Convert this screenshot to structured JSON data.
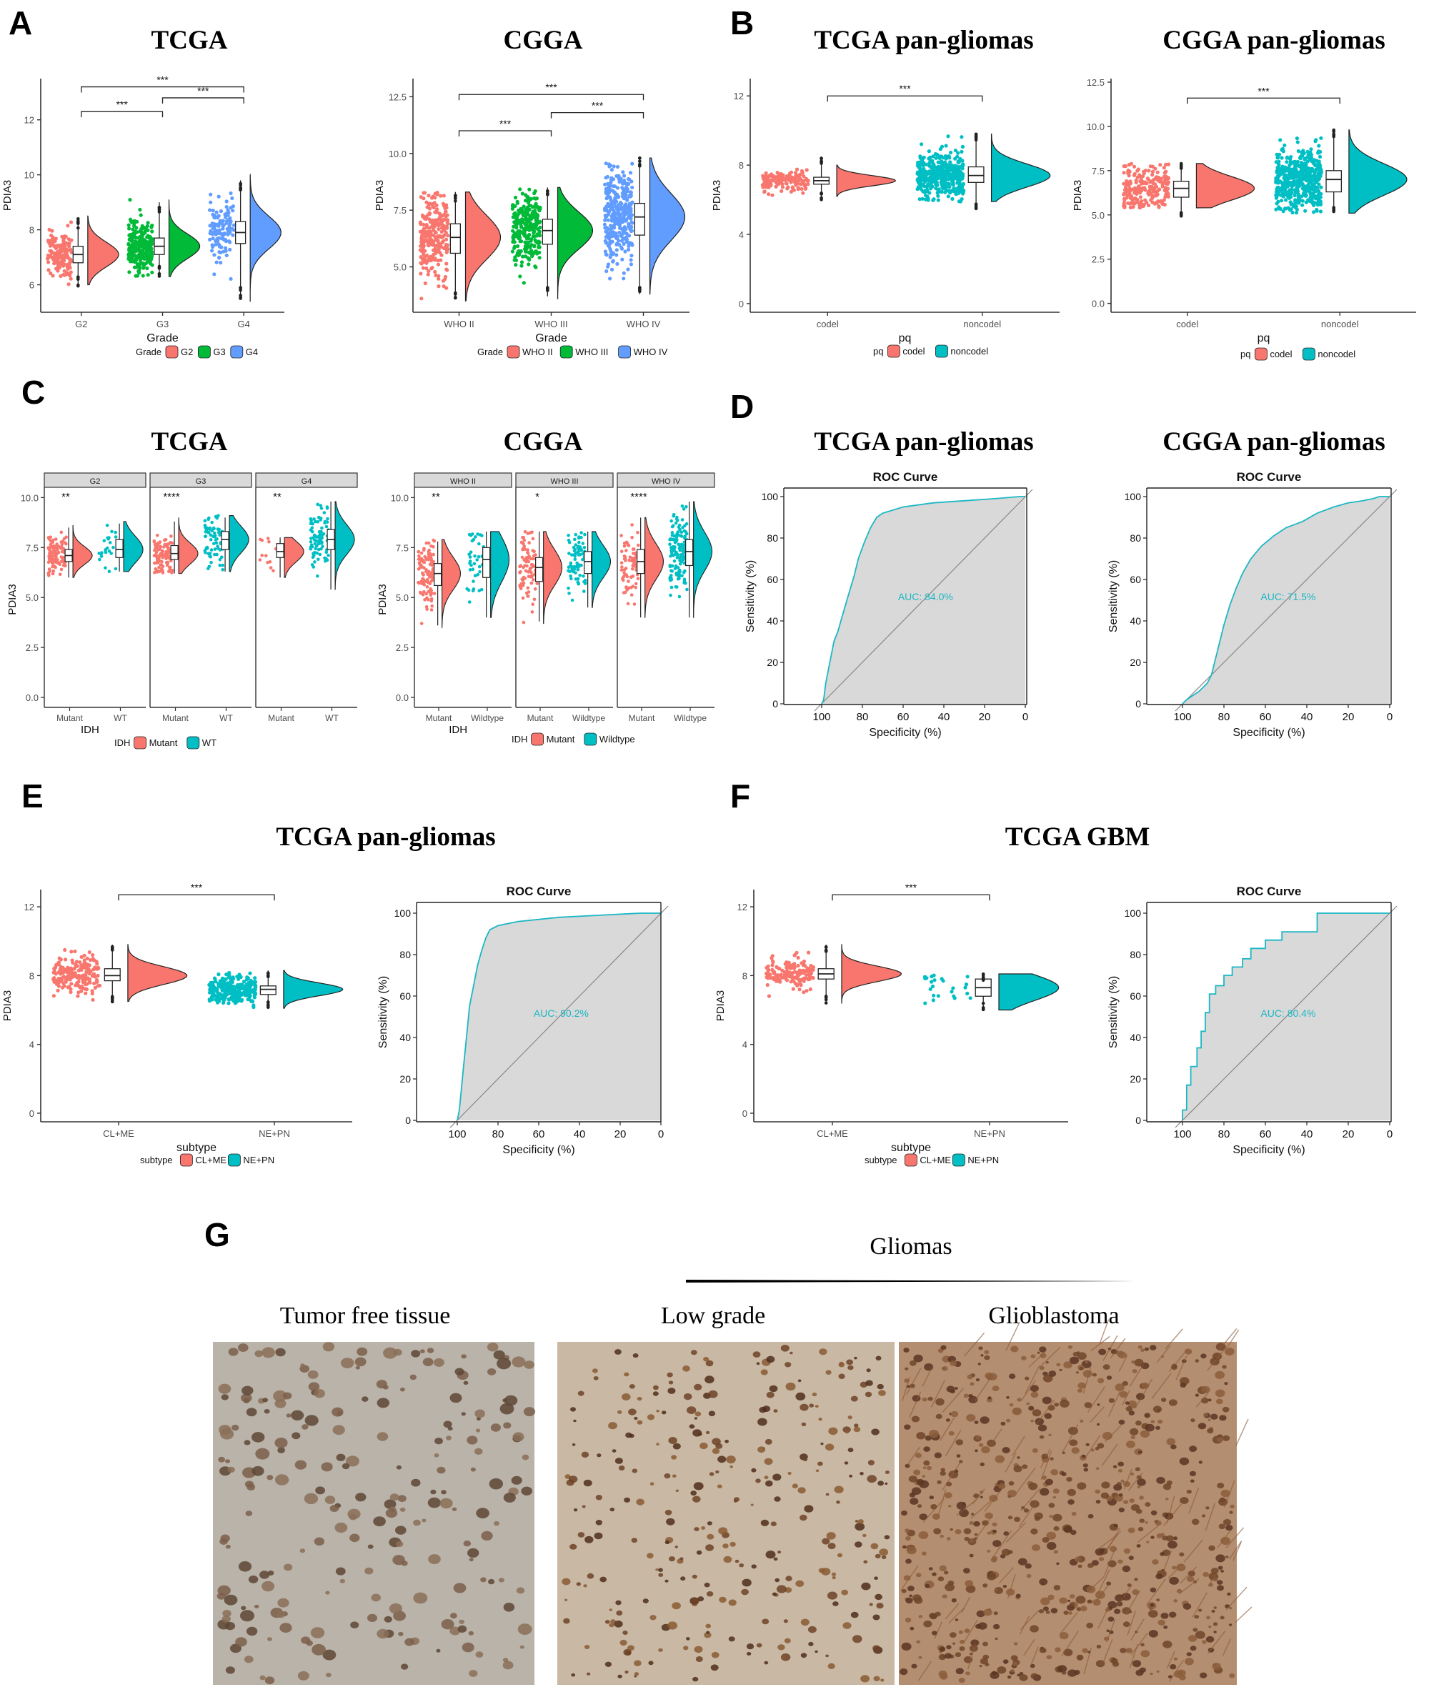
{
  "figure": {
    "panel_letters": [
      "A",
      "B",
      "C",
      "D",
      "E",
      "F",
      "G"
    ],
    "titles": {
      "A": [
        "TCGA",
        "CGGA"
      ],
      "B": [
        "TCGA  pan-gliomas",
        "CGGA  pan-gliomas"
      ],
      "C": [
        "TCGA",
        "CGGA"
      ],
      "D": [
        "TCGA  pan-gliomas",
        "CGGA  pan-gliomas"
      ],
      "E": [
        "TCGA  pan-gliomas"
      ],
      "F": [
        "TCGA  GBM"
      ]
    },
    "ihc": {
      "group_label": "Gliomas",
      "captions": [
        "Tumor free tissue",
        "Low grade",
        "Glioblastoma"
      ],
      "colors": [
        "#b9b3a9",
        "#c8b8a4",
        "#b48e70"
      ]
    }
  },
  "chart_data": [
    {
      "id": "A1",
      "type": "raincloud",
      "ylabel": "PDIA3",
      "xlabel": "Grade",
      "ylim": [
        5,
        13.5
      ],
      "yticks": [
        6,
        8,
        10,
        12
      ],
      "categories": [
        "G2",
        "G3",
        "G4"
      ],
      "colors": [
        "#F8766D",
        "#00BA38",
        "#619CFF"
      ],
      "legend": {
        "title": "Grade",
        "entries": [
          "G2",
          "G3",
          "G4"
        ]
      },
      "medians": [
        7.1,
        7.4,
        7.9
      ],
      "q1": [
        6.8,
        7.1,
        7.5
      ],
      "q3": [
        7.4,
        7.7,
        8.3
      ],
      "wmin": [
        5.9,
        6.3,
        5.5
      ],
      "wmax": [
        8.4,
        9.0,
        9.8
      ],
      "spread": [
        [
          6.0,
          8.5
        ],
        [
          6.3,
          9.1
        ],
        [
          5.4,
          10.0
        ]
      ],
      "comparisons": [
        {
          "a": 0,
          "b": 1,
          "label": "***",
          "y": 12.3
        },
        {
          "a": 1,
          "b": 2,
          "label": "***",
          "y": 12.8
        },
        {
          "a": 0,
          "b": 2,
          "label": "***",
          "y": 13.2
        }
      ]
    },
    {
      "id": "A2",
      "type": "raincloud",
      "ylabel": "PDIA3",
      "xlabel": "Grade",
      "ylim": [
        3,
        13.3
      ],
      "yticks": [
        5,
        7.5,
        10,
        12.5
      ],
      "ytick_labels": [
        "5.0",
        "7.5",
        "10.0",
        "12.5"
      ],
      "categories": [
        "WHO II",
        "WHO III",
        "WHO IV"
      ],
      "colors": [
        "#F8766D",
        "#00BA38",
        "#619CFF"
      ],
      "legend": {
        "title": "Grade",
        "entries": [
          "WHO II",
          "WHO III",
          "WHO IV"
        ]
      },
      "medians": [
        6.3,
        6.6,
        7.2
      ],
      "q1": [
        5.6,
        6.0,
        6.4
      ],
      "q3": [
        6.9,
        7.1,
        7.8
      ],
      "wmin": [
        3.6,
        3.7,
        3.8
      ],
      "wmax": [
        8.3,
        8.5,
        9.8
      ],
      "spread": [
        [
          3.5,
          8.3
        ],
        [
          3.6,
          8.5
        ],
        [
          3.8,
          9.8
        ]
      ],
      "comparisons": [
        {
          "a": 0,
          "b": 1,
          "label": "***",
          "y": 11.0
        },
        {
          "a": 1,
          "b": 2,
          "label": "***",
          "y": 11.8
        },
        {
          "a": 0,
          "b": 2,
          "label": "***",
          "y": 12.6
        }
      ]
    },
    {
      "id": "B1",
      "type": "raincloud",
      "ylabel": "PDIA3",
      "xlabel": "pq",
      "ylim": [
        -0.5,
        13
      ],
      "yticks": [
        0,
        4,
        8,
        12
      ],
      "categories": [
        "codel",
        "noncodel"
      ],
      "colors": [
        "#F8766D",
        "#00BFC4"
      ],
      "legend": {
        "title": "pq",
        "entries": [
          "codel",
          "noncodel"
        ]
      },
      "medians": [
        7.1,
        7.4
      ],
      "q1": [
        6.9,
        7.0
      ],
      "q3": [
        7.3,
        7.9
      ],
      "wmin": [
        6.0,
        5.4
      ],
      "wmax": [
        8.4,
        9.8
      ],
      "spread": [
        [
          6.2,
          8.0
        ],
        [
          5.9,
          9.8
        ]
      ],
      "comparisons": [
        {
          "a": 0,
          "b": 1,
          "label": "***",
          "y": 12.0
        }
      ]
    },
    {
      "id": "B2",
      "type": "raincloud",
      "ylabel": "PDIA3",
      "xlabel": "pq",
      "ylim": [
        -0.5,
        12.7
      ],
      "yticks": [
        0,
        2.5,
        5,
        7.5,
        10,
        12.5
      ],
      "ytick_labels": [
        "0.0",
        "2.5",
        "5.0",
        "7.5",
        "10.0",
        "12.5"
      ],
      "categories": [
        "codel",
        "noncodel"
      ],
      "colors": [
        "#F8766D",
        "#00BFC4"
      ],
      "legend": {
        "title": "pq",
        "entries": [
          "codel",
          "noncodel"
        ]
      },
      "medians": [
        6.5,
        7.0
      ],
      "q1": [
        6.0,
        6.3
      ],
      "q3": [
        6.9,
        7.5
      ],
      "wmin": [
        4.9,
        5.1
      ],
      "wmax": [
        7.9,
        9.8
      ],
      "spread": [
        [
          5.4,
          7.9
        ],
        [
          5.1,
          9.8
        ]
      ],
      "comparisons": [
        {
          "a": 0,
          "b": 1,
          "label": "***",
          "y": 11.6
        }
      ]
    },
    {
      "id": "C1",
      "type": "facet_raincloud",
      "ylabel": "PDIA3",
      "xlabel": "IDH",
      "ylim": [
        -0.5,
        10.3
      ],
      "yticks": [
        0,
        2.5,
        5,
        7.5,
        10
      ],
      "ytick_labels": [
        "0.0",
        "2.5",
        "5.0",
        "7.5",
        "10.0"
      ],
      "facets": [
        "G2",
        "G3",
        "G4"
      ],
      "categories": [
        "Mutant",
        "WT"
      ],
      "colors": [
        "#F8766D",
        "#00BFC4"
      ],
      "legend": {
        "title": "IDH",
        "entries": [
          "Mutant",
          "WT"
        ]
      },
      "signif": [
        "**",
        "****",
        "**"
      ],
      "medians": [
        [
          7.1,
          7.4
        ],
        [
          7.2,
          7.9
        ],
        [
          7.3,
          7.9
        ]
      ],
      "q1": [
        [
          6.8,
          7.0
        ],
        [
          6.9,
          7.4
        ],
        [
          7.0,
          7.4
        ]
      ],
      "q3": [
        [
          7.4,
          7.9
        ],
        [
          7.6,
          8.3
        ],
        [
          7.7,
          8.4
        ]
      ],
      "wmin": [
        [
          6.0,
          6.3
        ],
        [
          6.2,
          6.3
        ],
        [
          6.0,
          5.4
        ]
      ],
      "wmax": [
        [
          8.5,
          8.7
        ],
        [
          8.8,
          9.0
        ],
        [
          8.0,
          9.8
        ]
      ],
      "spread": [
        [
          [
            6.0,
            8.6
          ],
          [
            6.3,
            8.8
          ]
        ],
        [
          [
            6.2,
            9.0
          ],
          [
            6.3,
            9.1
          ]
        ],
        [
          [
            6.0,
            8.0
          ],
          [
            5.4,
            9.8
          ]
        ]
      ],
      "counts": [
        [
          110,
          25
        ],
        [
          110,
          70
        ],
        [
          12,
          90
        ]
      ]
    },
    {
      "id": "C2",
      "type": "facet_raincloud",
      "ylabel": "PDIA3",
      "xlabel": "IDH",
      "ylim": [
        -0.5,
        10.3
      ],
      "yticks": [
        0,
        2.5,
        5,
        7.5,
        10
      ],
      "ytick_labels": [
        "0.0",
        "2.5",
        "5.0",
        "7.5",
        "10.0"
      ],
      "facets": [
        "WHO II",
        "WHO III",
        "WHO IV"
      ],
      "categories": [
        "Mutant",
        "Wildtype"
      ],
      "colors": [
        "#F8766D",
        "#00BFC4"
      ],
      "legend": {
        "title": "IDH",
        "entries": [
          "Mutant",
          "Wildtype"
        ]
      },
      "signif": [
        "**",
        "*",
        "****"
      ],
      "medians": [
        [
          6.2,
          6.9
        ],
        [
          6.5,
          6.8
        ],
        [
          6.8,
          7.3
        ]
      ],
      "q1": [
        [
          5.6,
          6.0
        ],
        [
          5.8,
          6.2
        ],
        [
          6.2,
          6.6
        ]
      ],
      "q3": [
        [
          6.7,
          7.5
        ],
        [
          7.0,
          7.3
        ],
        [
          7.4,
          7.9
        ]
      ],
      "wmin": [
        [
          3.6,
          4.0
        ],
        [
          3.8,
          4.5
        ],
        [
          4.0,
          4.0
        ]
      ],
      "wmax": [
        [
          7.8,
          8.3
        ],
        [
          8.3,
          8.3
        ],
        [
          9.0,
          9.8
        ]
      ],
      "spread": [
        [
          [
            3.5,
            7.9
          ],
          [
            4.0,
            8.3
          ]
        ],
        [
          [
            3.7,
            8.3
          ],
          [
            4.5,
            8.3
          ]
        ],
        [
          [
            4.0,
            9.0
          ],
          [
            4.0,
            9.8
          ]
        ]
      ],
      "counts": [
        [
          110,
          40
        ],
        [
          90,
          80
        ],
        [
          80,
          150
        ]
      ]
    },
    {
      "id": "D1",
      "type": "roc",
      "title": "ROC Curve",
      "xlabel": "Specificity (%)",
      "ylabel": "Sensitivity (%)",
      "auc_label": "AUC: 84.0%",
      "ticks": [
        100,
        80,
        60,
        40,
        20,
        0
      ],
      "curve": [
        [
          100,
          0
        ],
        [
          99,
          2
        ],
        [
          98,
          10
        ],
        [
          96,
          20
        ],
        [
          95,
          25
        ],
        [
          94,
          30
        ],
        [
          92,
          35
        ],
        [
          90,
          42
        ],
        [
          87,
          52
        ],
        [
          84,
          62
        ],
        [
          82,
          70
        ],
        [
          79,
          78
        ],
        [
          76,
          85
        ],
        [
          73,
          90
        ],
        [
          70,
          92
        ],
        [
          60,
          95
        ],
        [
          45,
          97
        ],
        [
          30,
          98
        ],
        [
          15,
          99
        ],
        [
          3,
          100
        ],
        [
          0,
          100
        ]
      ]
    },
    {
      "id": "D2",
      "type": "roc",
      "title": "ROC Curve",
      "xlabel": "Specificity (%)",
      "ylabel": "Sensitivity (%)",
      "auc_label": "AUC: 71.5%",
      "ticks": [
        100,
        80,
        60,
        40,
        20,
        0
      ],
      "curve": [
        [
          100,
          0
        ],
        [
          98,
          2
        ],
        [
          95,
          4
        ],
        [
          92,
          6
        ],
        [
          88,
          10
        ],
        [
          86,
          14
        ],
        [
          84,
          22
        ],
        [
          82,
          30
        ],
        [
          80,
          38
        ],
        [
          77,
          48
        ],
        [
          74,
          56
        ],
        [
          71,
          63
        ],
        [
          67,
          70
        ],
        [
          62,
          76
        ],
        [
          56,
          81
        ],
        [
          50,
          85
        ],
        [
          42,
          88
        ],
        [
          35,
          92
        ],
        [
          27,
          95
        ],
        [
          20,
          97
        ],
        [
          13,
          98
        ],
        [
          8,
          99
        ],
        [
          5,
          100
        ],
        [
          0,
          100
        ]
      ]
    },
    {
      "id": "E1",
      "type": "raincloud",
      "ylabel": "PDIA3",
      "xlabel": "subtype",
      "ylim": [
        -0.5,
        13
      ],
      "yticks": [
        0,
        4,
        8,
        12
      ],
      "categories": [
        "CL+ME",
        "NE+PN"
      ],
      "colors": [
        "#F8766D",
        "#00BFC4"
      ],
      "legend": {
        "title": "subtype",
        "entries": [
          "CL+ME",
          "NE+PN"
        ]
      },
      "medians": [
        8.0,
        7.2
      ],
      "q1": [
        7.7,
        6.9
      ],
      "q3": [
        8.4,
        7.4
      ],
      "wmin": [
        6.4,
        6.1
      ],
      "wmax": [
        9.8,
        8.3
      ],
      "spread": [
        [
          6.5,
          9.8
        ],
        [
          6.1,
          8.3
        ]
      ],
      "comparisons": [
        {
          "a": 0,
          "b": 1,
          "label": "***",
          "y": 12.7
        }
      ]
    },
    {
      "id": "E2",
      "type": "roc",
      "title": "ROC Curve",
      "xlabel": "Specificity (%)",
      "ylabel": "Sensitivity (%)",
      "auc_label": "AUC: 90.2%",
      "ticks": [
        100,
        80,
        60,
        40,
        20,
        0
      ],
      "curve": [
        [
          100,
          0
        ],
        [
          99,
          5
        ],
        [
          98,
          15
        ],
        [
          97,
          25
        ],
        [
          96,
          35
        ],
        [
          95,
          45
        ],
        [
          94,
          55
        ],
        [
          92,
          65
        ],
        [
          90,
          75
        ],
        [
          88,
          82
        ],
        [
          86,
          88
        ],
        [
          84,
          92
        ],
        [
          80,
          94
        ],
        [
          70,
          96
        ],
        [
          50,
          98
        ],
        [
          30,
          99
        ],
        [
          10,
          100
        ],
        [
          0,
          100
        ]
      ]
    },
    {
      "id": "F1",
      "type": "raincloud",
      "ylabel": "PDIA3",
      "xlabel": "subtype",
      "ylim": [
        -0.5,
        13
      ],
      "yticks": [
        0,
        4,
        8,
        12
      ],
      "categories": [
        "CL+ME",
        "NE+PN"
      ],
      "colors": [
        "#F8766D",
        "#00BFC4"
      ],
      "legend": {
        "title": "subtype",
        "entries": [
          "CL+ME",
          "NE+PN"
        ]
      },
      "medians": [
        8.1,
        7.3
      ],
      "q1": [
        7.8,
        6.8
      ],
      "q3": [
        8.4,
        7.8
      ],
      "wmin": [
        6.4,
        6.0
      ],
      "wmax": [
        9.8,
        8.1
      ],
      "spread": [
        [
          6.4,
          9.8
        ],
        [
          6.0,
          8.1
        ]
      ],
      "comparisons": [
        {
          "a": 0,
          "b": 1,
          "label": "***",
          "y": 12.7
        }
      ]
    },
    {
      "id": "F2",
      "type": "roc",
      "title": "ROC Curve",
      "xlabel": "Specificity (%)",
      "ylabel": "Sensitivity (%)",
      "auc_label": "AUC: 80.4%",
      "ticks": [
        100,
        80,
        60,
        40,
        20,
        0
      ],
      "curve": [
        [
          100,
          0
        ],
        [
          100,
          5
        ],
        [
          98,
          5
        ],
        [
          98,
          17
        ],
        [
          96,
          17
        ],
        [
          96,
          26
        ],
        [
          93,
          26
        ],
        [
          93,
          35
        ],
        [
          91,
          35
        ],
        [
          91,
          43
        ],
        [
          89,
          43
        ],
        [
          89,
          52
        ],
        [
          87,
          52
        ],
        [
          87,
          61
        ],
        [
          84,
          61
        ],
        [
          84,
          65
        ],
        [
          80,
          65
        ],
        [
          80,
          70
        ],
        [
          76,
          70
        ],
        [
          76,
          74
        ],
        [
          71,
          74
        ],
        [
          71,
          78
        ],
        [
          67,
          78
        ],
        [
          67,
          83
        ],
        [
          60,
          83
        ],
        [
          60,
          87
        ],
        [
          52,
          87
        ],
        [
          52,
          91
        ],
        [
          35,
          91
        ],
        [
          35,
          100
        ],
        [
          0,
          100
        ]
      ]
    }
  ]
}
